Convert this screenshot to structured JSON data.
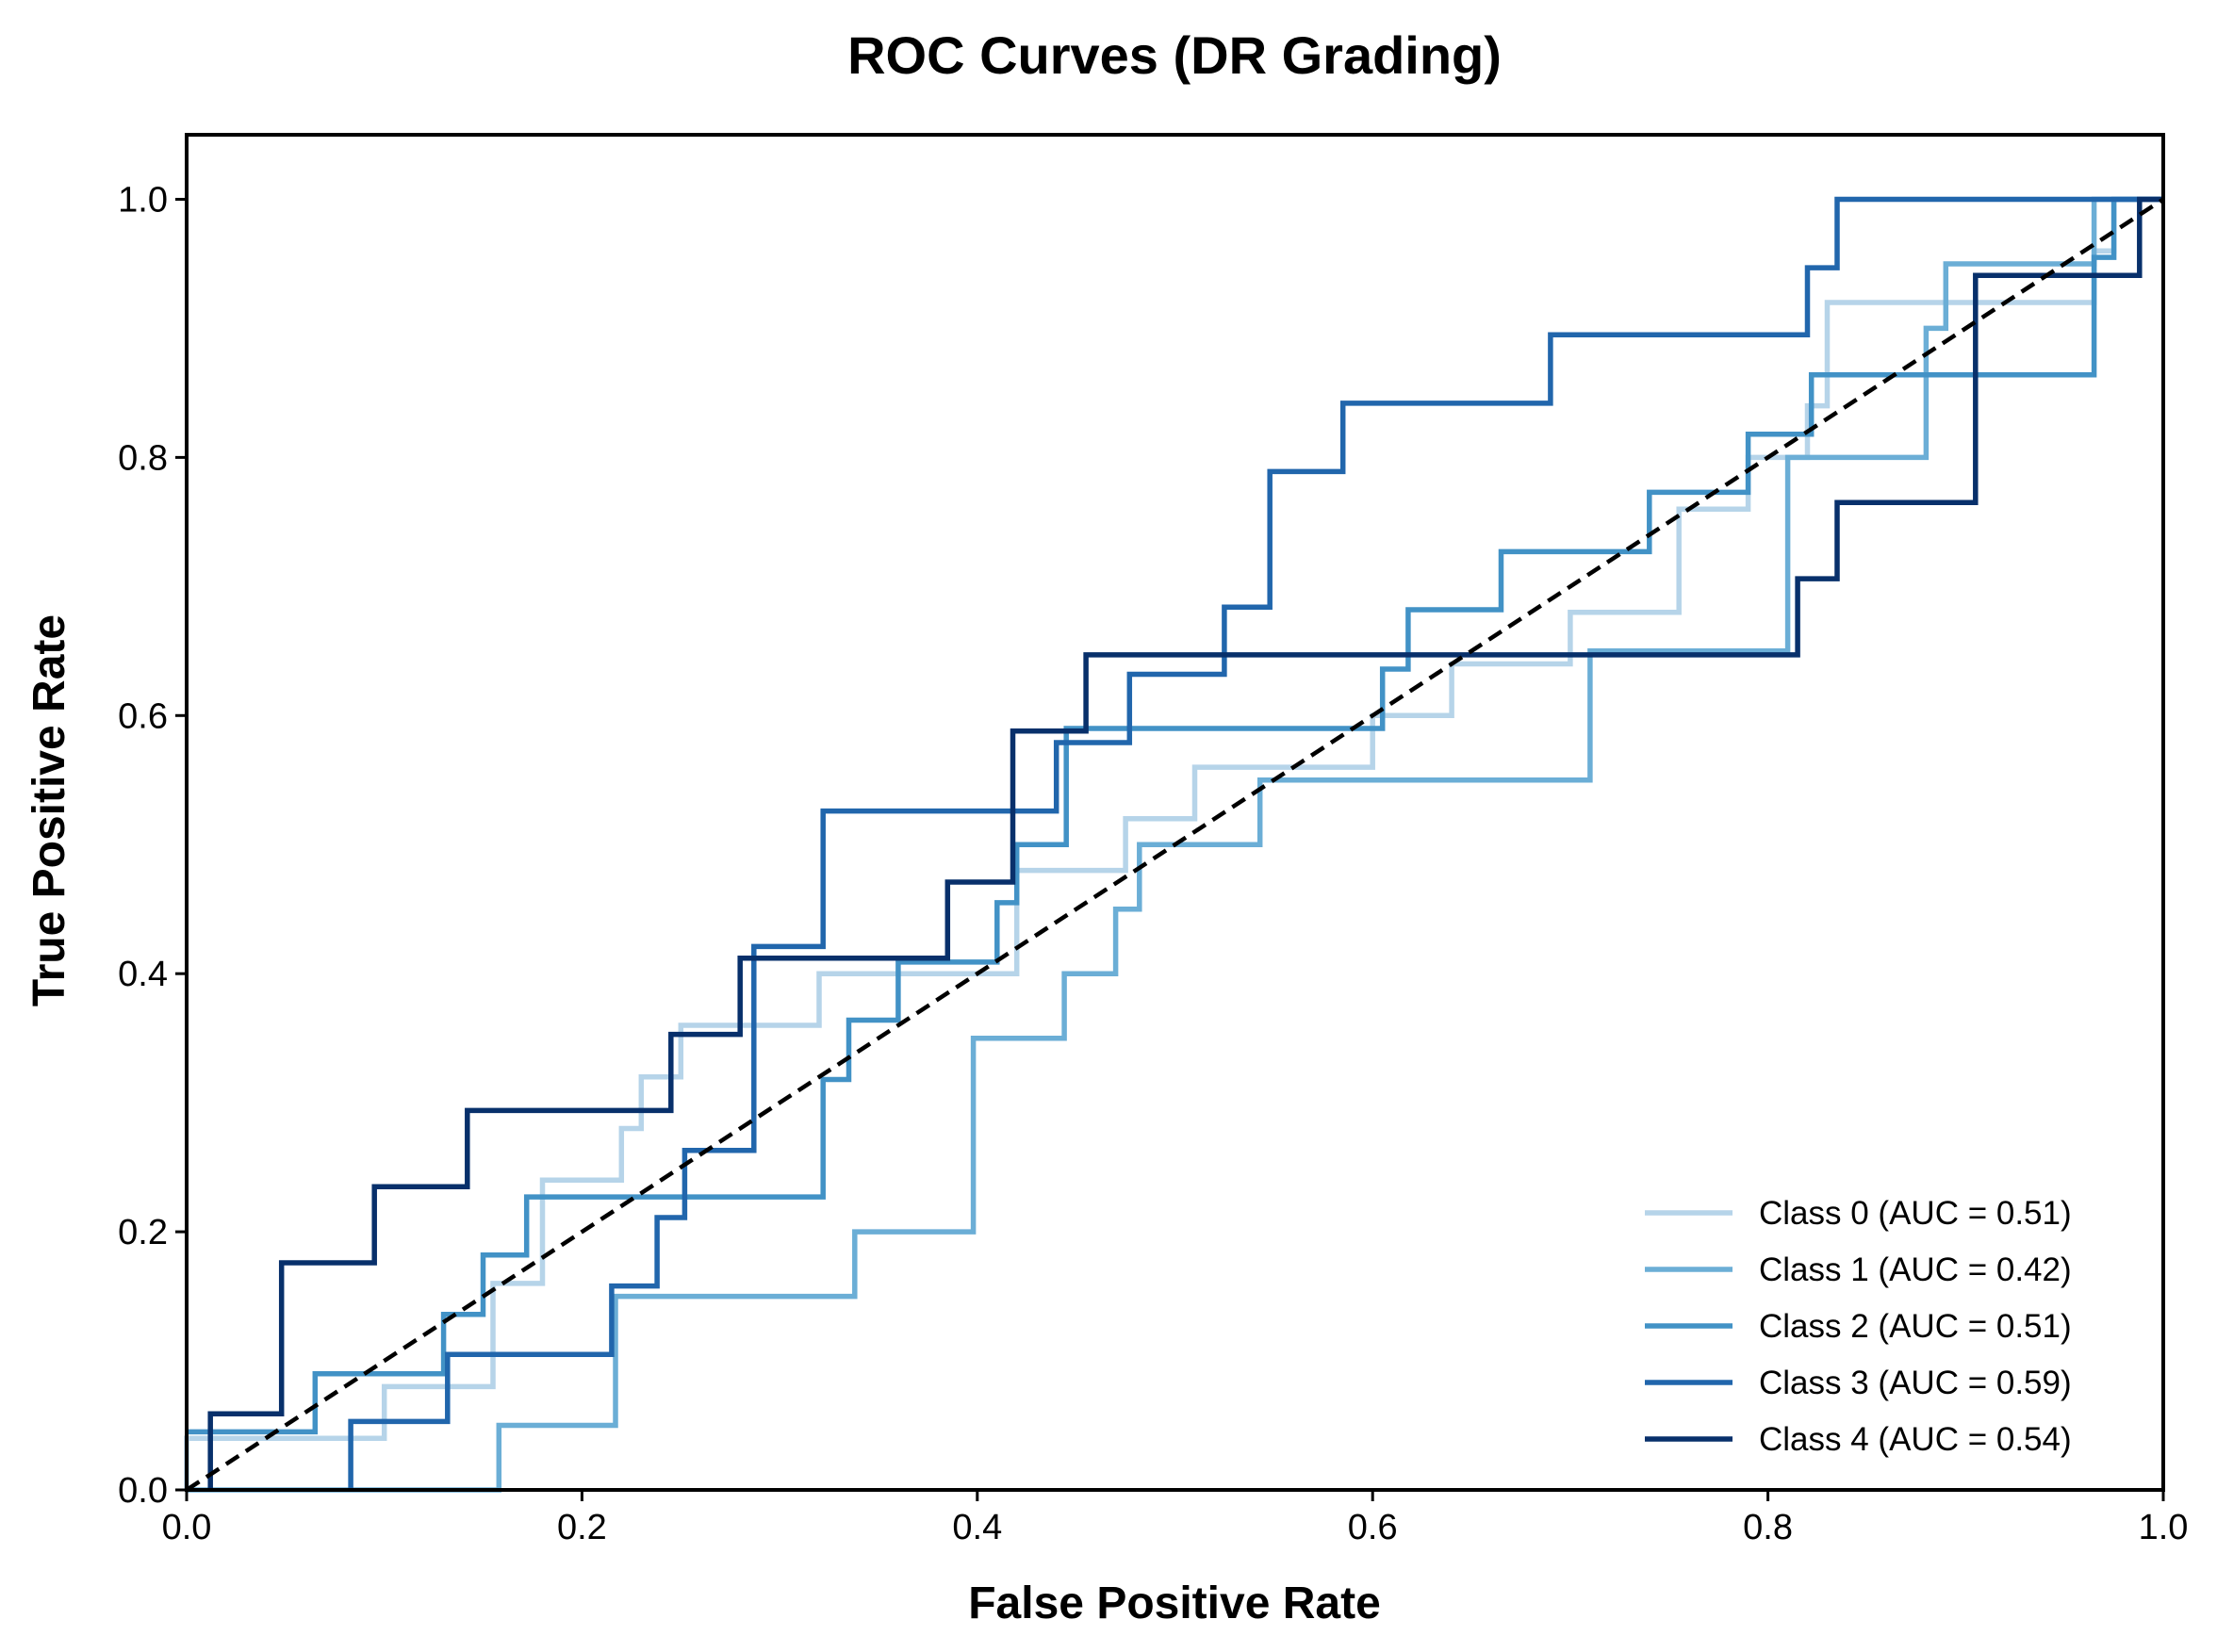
{
  "chart_data": {
    "type": "line",
    "title": "ROC Curves (DR Grading)",
    "xlabel": "False Positive Rate",
    "ylabel": "True Positive Rate",
    "xlim": [
      0.0,
      1.0
    ],
    "ylim": [
      0.0,
      1.05
    ],
    "xticks": [
      "0.0",
      "0.2",
      "0.4",
      "0.6",
      "0.8",
      "1.0"
    ],
    "yticks": [
      "0.0",
      "0.2",
      "0.4",
      "0.6",
      "0.8",
      "1.0"
    ],
    "grid": false,
    "legend_position": "lower-right",
    "reference_line": {
      "style": "dashed",
      "color": "#000000",
      "points": [
        [
          0,
          0
        ],
        [
          1,
          1
        ]
      ]
    },
    "series": [
      {
        "name": "Class 0 (AUC = 0.51)",
        "color": "#b6d4e9",
        "points": [
          [
            0,
            0
          ],
          [
            0,
            0.04
          ],
          [
            0.04,
            0.04
          ],
          [
            0.04,
            0.04
          ],
          [
            0.1,
            0.04
          ],
          [
            0.1,
            0.08
          ],
          [
            0.155,
            0.08
          ],
          [
            0.155,
            0.16
          ],
          [
            0.18,
            0.16
          ],
          [
            0.18,
            0.24
          ],
          [
            0.22,
            0.24
          ],
          [
            0.22,
            0.28
          ],
          [
            0.23,
            0.28
          ],
          [
            0.23,
            0.32
          ],
          [
            0.25,
            0.32
          ],
          [
            0.25,
            0.36
          ],
          [
            0.32,
            0.36
          ],
          [
            0.32,
            0.4
          ],
          [
            0.42,
            0.4
          ],
          [
            0.42,
            0.48
          ],
          [
            0.475,
            0.48
          ],
          [
            0.475,
            0.52
          ],
          [
            0.51,
            0.52
          ],
          [
            0.51,
            0.56
          ],
          [
            0.6,
            0.56
          ],
          [
            0.6,
            0.6
          ],
          [
            0.64,
            0.6
          ],
          [
            0.64,
            0.64
          ],
          [
            0.7,
            0.64
          ],
          [
            0.7,
            0.68
          ],
          [
            0.755,
            0.68
          ],
          [
            0.755,
            0.76
          ],
          [
            0.79,
            0.76
          ],
          [
            0.79,
            0.8
          ],
          [
            0.82,
            0.8
          ],
          [
            0.82,
            0.84
          ],
          [
            0.83,
            0.84
          ],
          [
            0.83,
            0.92
          ],
          [
            0.965,
            0.92
          ],
          [
            0.965,
            0.96
          ],
          [
            0.975,
            0.96
          ],
          [
            0.975,
            1.0
          ],
          [
            1.0,
            1.0
          ]
        ]
      },
      {
        "name": "Class 1 (AUC = 0.42)",
        "color": "#6baed6",
        "points": [
          [
            0,
            0
          ],
          [
            0.158,
            0
          ],
          [
            0.158,
            0.05
          ],
          [
            0.217,
            0.05
          ],
          [
            0.217,
            0.15
          ],
          [
            0.338,
            0.15
          ],
          [
            0.338,
            0.2
          ],
          [
            0.398,
            0.2
          ],
          [
            0.398,
            0.35
          ],
          [
            0.444,
            0.35
          ],
          [
            0.444,
            0.4
          ],
          [
            0.47,
            0.4
          ],
          [
            0.47,
            0.45
          ],
          [
            0.482,
            0.45
          ],
          [
            0.482,
            0.5
          ],
          [
            0.543,
            0.5
          ],
          [
            0.543,
            0.55
          ],
          [
            0.71,
            0.55
          ],
          [
            0.71,
            0.65
          ],
          [
            0.81,
            0.65
          ],
          [
            0.81,
            0.8
          ],
          [
            0.88,
            0.8
          ],
          [
            0.88,
            0.9
          ],
          [
            0.89,
            0.9
          ],
          [
            0.89,
            0.95
          ],
          [
            0.965,
            0.95
          ],
          [
            0.965,
            1.0
          ],
          [
            1.0,
            1.0
          ]
        ]
      },
      {
        "name": "Class 2 (AUC = 0.51)",
        "color": "#4292c6",
        "points": [
          [
            0,
            0.045
          ],
          [
            0.065,
            0.045
          ],
          [
            0.065,
            0.09
          ],
          [
            0.13,
            0.09
          ],
          [
            0.13,
            0.136
          ],
          [
            0.15,
            0.136
          ],
          [
            0.15,
            0.182
          ],
          [
            0.172,
            0.182
          ],
          [
            0.172,
            0.227
          ],
          [
            0.322,
            0.227
          ],
          [
            0.322,
            0.318
          ],
          [
            0.335,
            0.318
          ],
          [
            0.335,
            0.364
          ],
          [
            0.36,
            0.364
          ],
          [
            0.36,
            0.409
          ],
          [
            0.41,
            0.409
          ],
          [
            0.41,
            0.455
          ],
          [
            0.42,
            0.455
          ],
          [
            0.42,
            0.5
          ],
          [
            0.445,
            0.5
          ],
          [
            0.445,
            0.59
          ],
          [
            0.605,
            0.59
          ],
          [
            0.605,
            0.636
          ],
          [
            0.618,
            0.636
          ],
          [
            0.618,
            0.682
          ],
          [
            0.665,
            0.682
          ],
          [
            0.665,
            0.727
          ],
          [
            0.74,
            0.727
          ],
          [
            0.74,
            0.773
          ],
          [
            0.79,
            0.773
          ],
          [
            0.79,
            0.818
          ],
          [
            0.822,
            0.818
          ],
          [
            0.822,
            0.864
          ],
          [
            0.965,
            0.864
          ],
          [
            0.965,
            0.955
          ],
          [
            0.975,
            0.955
          ],
          [
            0.975,
            1.0
          ],
          [
            1.0,
            1.0
          ]
        ]
      },
      {
        "name": "Class 3 (AUC = 0.59)",
        "color": "#2166ac",
        "points": [
          [
            0.083,
            0
          ],
          [
            0.083,
            0.053
          ],
          [
            0.132,
            0.053
          ],
          [
            0.132,
            0.105
          ],
          [
            0.215,
            0.105
          ],
          [
            0.215,
            0.158
          ],
          [
            0.238,
            0.158
          ],
          [
            0.238,
            0.211
          ],
          [
            0.252,
            0.211
          ],
          [
            0.252,
            0.263
          ],
          [
            0.287,
            0.263
          ],
          [
            0.287,
            0.421
          ],
          [
            0.322,
            0.421
          ],
          [
            0.322,
            0.526
          ],
          [
            0.44,
            0.526
          ],
          [
            0.44,
            0.579
          ],
          [
            0.477,
            0.579
          ],
          [
            0.477,
            0.632
          ],
          [
            0.525,
            0.632
          ],
          [
            0.525,
            0.684
          ],
          [
            0.548,
            0.684
          ],
          [
            0.548,
            0.789
          ],
          [
            0.585,
            0.789
          ],
          [
            0.585,
            0.842
          ],
          [
            0.69,
            0.842
          ],
          [
            0.69,
            0.895
          ],
          [
            0.82,
            0.895
          ],
          [
            0.82,
            0.947
          ],
          [
            0.835,
            0.947
          ],
          [
            0.835,
            1.0
          ],
          [
            1.0,
            1.0
          ]
        ]
      },
      {
        "name": "Class 4 (AUC = 0.54)",
        "color": "#08306b",
        "points": [
          [
            0.012,
            0
          ],
          [
            0.012,
            0.059
          ],
          [
            0.048,
            0.059
          ],
          [
            0.048,
            0.176
          ],
          [
            0.095,
            0.176
          ],
          [
            0.095,
            0.235
          ],
          [
            0.142,
            0.235
          ],
          [
            0.142,
            0.294
          ],
          [
            0.245,
            0.294
          ],
          [
            0.245,
            0.353
          ],
          [
            0.28,
            0.353
          ],
          [
            0.28,
            0.412
          ],
          [
            0.385,
            0.412
          ],
          [
            0.385,
            0.471
          ],
          [
            0.418,
            0.471
          ],
          [
            0.418,
            0.588
          ],
          [
            0.455,
            0.588
          ],
          [
            0.455,
            0.647
          ],
          [
            0.815,
            0.647
          ],
          [
            0.815,
            0.706
          ],
          [
            0.835,
            0.706
          ],
          [
            0.835,
            0.765
          ],
          [
            0.905,
            0.765
          ],
          [
            0.905,
            0.941
          ],
          [
            0.988,
            0.941
          ],
          [
            0.988,
            1.0
          ],
          [
            1.0,
            1.0
          ]
        ]
      }
    ]
  }
}
